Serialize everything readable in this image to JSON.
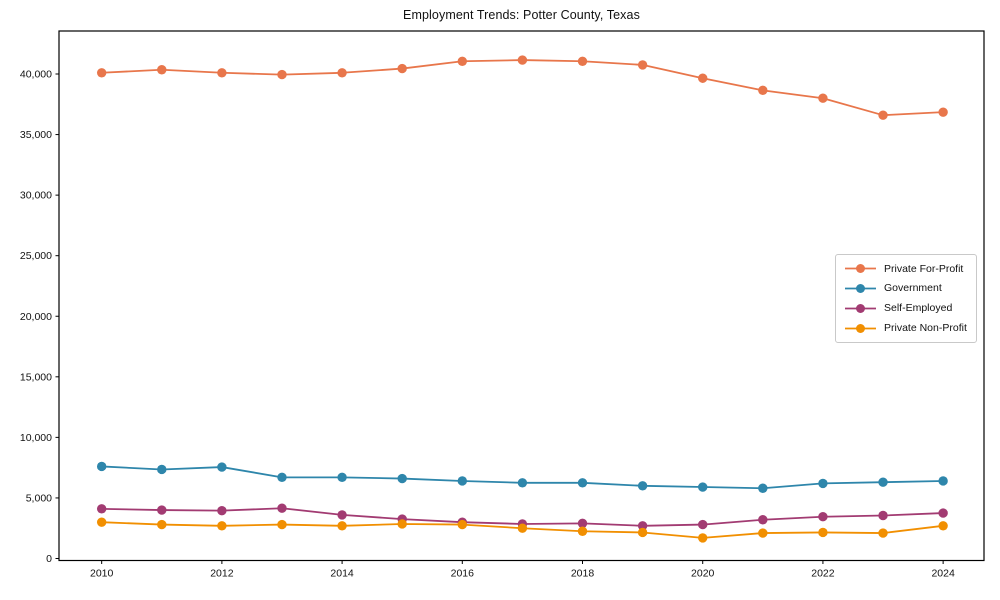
{
  "chart_data": {
    "type": "line",
    "title": "Employment Trends: Potter County, Texas",
    "xlabel": "",
    "ylabel": "",
    "grid": false,
    "marker": "circle",
    "legend_position": "center-right",
    "x": [
      2010,
      2011,
      2012,
      2013,
      2014,
      2015,
      2016,
      2017,
      2018,
      2019,
      2020,
      2021,
      2022,
      2023,
      2024
    ],
    "series": [
      {
        "name": "Private For-Profit",
        "color": "#E8764B",
        "values": [
          40100,
          40350,
          40100,
          39950,
          40100,
          40450,
          41050,
          41150,
          41050,
          40750,
          39650,
          38650,
          38000,
          36600,
          36850
        ]
      },
      {
        "name": "Government",
        "color": "#2E86AB",
        "values": [
          7600,
          7350,
          7550,
          6700,
          6700,
          6600,
          6400,
          6250,
          6250,
          6000,
          5900,
          5800,
          6200,
          6300,
          6400
        ]
      },
      {
        "name": "Self-Employed",
        "color": "#A23B72",
        "values": [
          4100,
          4000,
          3950,
          4150,
          3600,
          3250,
          3000,
          2850,
          2900,
          2700,
          2800,
          3200,
          3450,
          3550,
          3750
        ]
      },
      {
        "name": "Private Non-Profit",
        "color": "#F18F01",
        "values": [
          3000,
          2800,
          2700,
          2800,
          2700,
          2850,
          2800,
          2500,
          2250,
          2150,
          1700,
          2100,
          2150,
          2100,
          2700
        ]
      }
    ],
    "xticks": [
      2010,
      2012,
      2014,
      2016,
      2018,
      2020,
      2022,
      2024
    ],
    "xtick_labels": [
      "2010",
      "2012",
      "2014",
      "2016",
      "2018",
      "2020",
      "2022",
      "2024"
    ],
    "yticks": [
      0,
      5000,
      10000,
      15000,
      20000,
      25000,
      30000,
      35000,
      40000
    ],
    "ytick_labels": [
      "0",
      "5,000",
      "10,000",
      "15,000",
      "20,000",
      "25,000",
      "30,000",
      "35,000",
      "40,000"
    ],
    "xlim": [
      2009.29,
      2024.68
    ],
    "ylim": [
      -165,
      43550
    ],
    "axis_color": "#000000"
  }
}
